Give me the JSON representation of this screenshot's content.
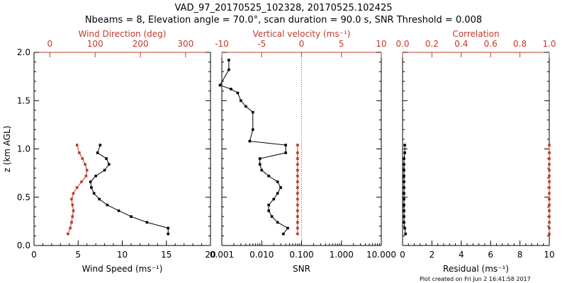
{
  "title": "VAD_97_20170525_102328, 20170525.102425",
  "subtitle": "Nbeams = 8, Elevation angle = 70.0°, scan duration = 90.0 s, SNR Threshold = 0.008",
  "footer": "Plot created on Fri Jun  2 16:41:58 2017",
  "colors": {
    "black": "#000000",
    "red": "#c0392b"
  },
  "chart_data": [
    {
      "type": "line",
      "panel": "wind",
      "ylabel": "z (km AGL)",
      "ylim": [
        0,
        2.0
      ],
      "yticks": [
        "0.0",
        "0.5",
        "1.0",
        "1.5",
        "2.0"
      ],
      "bottom_axis": {
        "label": "Wind Speed (ms⁻¹)",
        "range": [
          0,
          20
        ],
        "ticks": [
          "0",
          "5",
          "10",
          "15",
          "20"
        ]
      },
      "top_axis": {
        "label": "Wind Direction (deg)",
        "range": [
          -35,
          355
        ],
        "ticks": [
          "0",
          "100",
          "200",
          "300"
        ]
      },
      "series": [
        {
          "name": "Wind Speed",
          "axis": "bottom",
          "color": "#000000",
          "points": [
            [
              15.2,
              0.12
            ],
            [
              15.2,
              0.18
            ],
            [
              12.8,
              0.24
            ],
            [
              11.0,
              0.3
            ],
            [
              9.6,
              0.36
            ],
            [
              8.3,
              0.42
            ],
            [
              7.4,
              0.48
            ],
            [
              6.8,
              0.54
            ],
            [
              6.5,
              0.6
            ],
            [
              6.4,
              0.66
            ],
            [
              7.0,
              0.72
            ],
            [
              8.0,
              0.78
            ],
            [
              8.5,
              0.84
            ],
            [
              8.2,
              0.9
            ],
            [
              7.2,
              0.96
            ],
            [
              7.5,
              1.04
            ]
          ]
        },
        {
          "name": "Wind Direction",
          "axis": "top",
          "color": "#c0392b",
          "points": [
            [
              40,
              0.12
            ],
            [
              45,
              0.18
            ],
            [
              48,
              0.24
            ],
            [
              50,
              0.3
            ],
            [
              52,
              0.36
            ],
            [
              50,
              0.42
            ],
            [
              48,
              0.48
            ],
            [
              52,
              0.54
            ],
            [
              60,
              0.6
            ],
            [
              70,
              0.66
            ],
            [
              80,
              0.72
            ],
            [
              82,
              0.78
            ],
            [
              78,
              0.84
            ],
            [
              72,
              0.9
            ],
            [
              65,
              0.96
            ],
            [
              60,
              1.04
            ]
          ]
        }
      ]
    },
    {
      "type": "line",
      "panel": "snr",
      "ylim": [
        0,
        2.0
      ],
      "bottom_axis": {
        "label": "SNR",
        "scale": "log",
        "range": [
          0.001,
          10
        ],
        "ticks": [
          "0.001",
          "0.010",
          "0.100",
          "1.000",
          "10.000"
        ]
      },
      "top_axis": {
        "label": "Vertical velocity (ms⁻¹)",
        "range": [
          -10,
          10
        ],
        "ticks": [
          "-10",
          "-5",
          "0",
          "5",
          "10"
        ]
      },
      "series": [
        {
          "name": "SNR",
          "axis": "bottom",
          "color": "#000000",
          "points": [
            [
              0.035,
              0.12
            ],
            [
              0.045,
              0.18
            ],
            [
              0.025,
              0.24
            ],
            [
              0.018,
              0.3
            ],
            [
              0.015,
              0.36
            ],
            [
              0.015,
              0.42
            ],
            [
              0.02,
              0.48
            ],
            [
              0.025,
              0.54
            ],
            [
              0.03,
              0.6
            ],
            [
              0.025,
              0.66
            ],
            [
              0.015,
              0.72
            ],
            [
              0.01,
              0.78
            ],
            [
              0.009,
              0.84
            ],
            [
              0.009,
              0.9
            ],
            [
              0.04,
              0.96
            ],
            [
              0.04,
              1.04
            ],
            [
              0.005,
              1.08
            ],
            [
              0.006,
              1.2
            ],
            [
              0.006,
              1.38
            ],
            [
              0.004,
              1.44
            ],
            [
              0.003,
              1.5
            ],
            [
              0.0025,
              1.58
            ],
            [
              0.0017,
              1.62
            ],
            [
              0.0009,
              1.66
            ],
            [
              0.0015,
              1.82
            ],
            [
              0.0015,
              1.92
            ]
          ]
        },
        {
          "name": "Vertical velocity",
          "axis": "top",
          "color": "#c0392b",
          "points": [
            [
              -0.5,
              0.12
            ],
            [
              -0.5,
              0.18
            ],
            [
              -0.5,
              0.24
            ],
            [
              -0.5,
              0.3
            ],
            [
              -0.5,
              0.36
            ],
            [
              -0.5,
              0.42
            ],
            [
              -0.5,
              0.48
            ],
            [
              -0.5,
              0.54
            ],
            [
              -0.5,
              0.6
            ],
            [
              -0.5,
              0.66
            ],
            [
              -0.5,
              0.72
            ],
            [
              -0.5,
              0.78
            ],
            [
              -0.5,
              0.84
            ],
            [
              -0.5,
              0.9
            ],
            [
              -0.5,
              0.96
            ],
            [
              -0.5,
              1.04
            ]
          ]
        }
      ],
      "reference_line": {
        "axis": "bottom",
        "value": 0.1,
        "style": "dotted",
        "color": "#c0392b"
      }
    },
    {
      "type": "line",
      "panel": "residual",
      "ylim": [
        0,
        2.0
      ],
      "bottom_axis": {
        "label": "Residual (ms⁻¹)",
        "range": [
          0,
          10
        ],
        "ticks": [
          "0",
          "2",
          "4",
          "6",
          "8",
          "10"
        ]
      },
      "top_axis": {
        "label": "Correlation",
        "range": [
          0,
          1
        ],
        "ticks": [
          "0.0",
          "0.2",
          "0.4",
          "0.6",
          "0.8",
          "1.0"
        ]
      },
      "series": [
        {
          "name": "Residual",
          "axis": "bottom",
          "color": "#000000",
          "points": [
            [
              0.2,
              0.12
            ],
            [
              0.15,
              0.18
            ],
            [
              0.1,
              0.24
            ],
            [
              0.1,
              0.3
            ],
            [
              0.1,
              0.36
            ],
            [
              0.1,
              0.42
            ],
            [
              0.1,
              0.48
            ],
            [
              0.1,
              0.54
            ],
            [
              0.1,
              0.6
            ],
            [
              0.1,
              0.66
            ],
            [
              0.1,
              0.72
            ],
            [
              0.1,
              0.78
            ],
            [
              0.1,
              0.84
            ],
            [
              0.1,
              0.9
            ],
            [
              0.15,
              0.96
            ],
            [
              0.15,
              1.04
            ]
          ]
        },
        {
          "name": "Correlation",
          "axis": "top",
          "color": "#c0392b",
          "points": [
            [
              1.0,
              0.12
            ],
            [
              1.0,
              0.18
            ],
            [
              1.0,
              0.24
            ],
            [
              1.0,
              0.3
            ],
            [
              1.0,
              0.36
            ],
            [
              1.0,
              0.42
            ],
            [
              1.0,
              0.48
            ],
            [
              1.0,
              0.54
            ],
            [
              1.0,
              0.6
            ],
            [
              1.0,
              0.66
            ],
            [
              1.0,
              0.72
            ],
            [
              1.0,
              0.78
            ],
            [
              1.0,
              0.84
            ],
            [
              1.0,
              0.9
            ],
            [
              1.0,
              0.96
            ],
            [
              1.0,
              1.04
            ]
          ]
        }
      ]
    }
  ]
}
